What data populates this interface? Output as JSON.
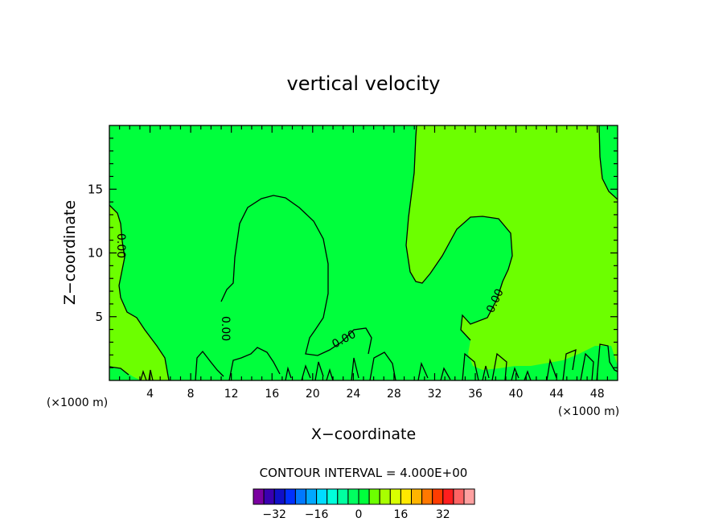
{
  "chart_data": {
    "type": "heatmap",
    "title": "vertical velocity",
    "xlabel": "X−coordinate",
    "ylabel": "Z−coordinate",
    "x_unit_left": "(×1000 m)",
    "x_unit_right": "(×1000 m)",
    "xlim": [
      0,
      50
    ],
    "ylim": [
      0,
      20
    ],
    "x_ticks": [
      4,
      8,
      12,
      16,
      20,
      24,
      28,
      32,
      36,
      40,
      44,
      48
    ],
    "y_ticks": [
      5,
      10,
      15
    ],
    "contour_interval_label": "CONTOUR INTERVAL = 4.000E+00",
    "contour_labels": [
      "0.00",
      "0.00",
      "0.00",
      "0.00"
    ],
    "fill_colors": {
      "positive": "#6cff00",
      "negative": "#00ff3c"
    },
    "colorbar": {
      "ticks": [
        -32,
        -16,
        0,
        16,
        32
      ],
      "tick_labels": [
        "−32",
        "−16",
        "0",
        "16",
        "32"
      ],
      "colors": [
        "#7a00a0",
        "#3a00b0",
        "#1010c8",
        "#0030ff",
        "#0078ff",
        "#00a8ff",
        "#00dcff",
        "#00ffdc",
        "#00ffa0",
        "#00ff60",
        "#00ff3c",
        "#6cff00",
        "#a8ff00",
        "#d8ff00",
        "#ffe800",
        "#ffb400",
        "#ff7800",
        "#ff3c00",
        "#ff1e1e",
        "#ff6464",
        "#ffa0a0"
      ]
    }
  }
}
